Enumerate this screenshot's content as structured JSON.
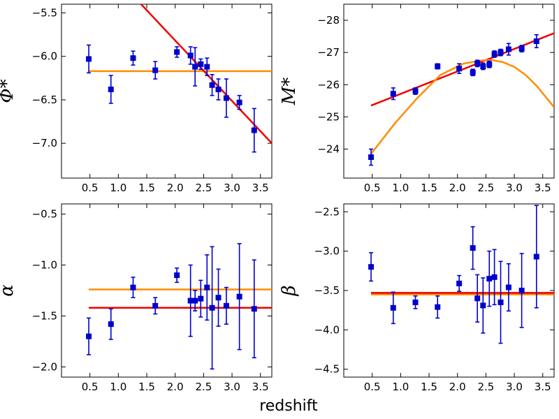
{
  "figure": {
    "xlabel": "redshift"
  },
  "colors": {
    "data": "#0000cc",
    "fit_red": "#ee0000",
    "fit_orange": "#ff8c00"
  },
  "chart_data": [
    {
      "type": "scatter",
      "panel": "top-left",
      "ylabel": "Φ*",
      "xlim": [
        0.0,
        3.7
      ],
      "ylim": [
        -7.4,
        -5.4
      ],
      "yinvert": false,
      "xticks": [
        0.5,
        1.0,
        1.5,
        2.0,
        2.5,
        3.0,
        3.5
      ],
      "xtick_labels": [
        "0.5",
        "1.0",
        "1.5",
        "2.0",
        "2.5",
        "3.0",
        "3.5"
      ],
      "yticks": [
        -5.5,
        -6.0,
        -6.5,
        -7.0
      ],
      "ytick_labels": [
        "−5.5",
        "−6.0",
        "−6.5",
        "−7.0"
      ],
      "points": {
        "x": [
          0.48,
          0.87,
          1.26,
          1.65,
          2.03,
          2.27,
          2.35,
          2.45,
          2.56,
          2.65,
          2.76,
          2.9,
          3.13,
          3.39
        ],
        "y": [
          -6.03,
          -6.38,
          -6.02,
          -6.16,
          -5.95,
          -5.99,
          -6.12,
          -6.09,
          -6.12,
          -6.33,
          -6.38,
          -6.48,
          -6.53,
          -6.85
        ],
        "err": [
          0.16,
          0.16,
          0.08,
          0.1,
          0.06,
          0.1,
          0.22,
          0.06,
          0.1,
          0.12,
          0.12,
          0.22,
          0.08,
          0.25
        ]
      },
      "lines": [
        {
          "name": "",
          "color": "fit_orange",
          "x": [
            0.48,
            3.7
          ],
          "y": [
            -6.17,
            -6.17
          ]
        },
        {
          "name": "",
          "color": "fit_red",
          "x": [
            1.4,
            3.7
          ],
          "y": [
            -5.4,
            -7.0
          ]
        }
      ]
    },
    {
      "type": "scatter",
      "panel": "top-right",
      "ylabel": "M*",
      "xlim": [
        0.0,
        3.7
      ],
      "ylim": [
        -23.1,
        -28.5
      ],
      "yinvert": true,
      "xticks": [
        0.5,
        1.0,
        1.5,
        2.0,
        2.5,
        3.0,
        3.5
      ],
      "xtick_labels": [
        "0.5",
        "1.0",
        "1.5",
        "2.0",
        "2.5",
        "3.0",
        "3.5"
      ],
      "yticks": [
        -24,
        -25,
        -26,
        -27,
        -28
      ],
      "ytick_labels": [
        "−24",
        "−25",
        "−26",
        "−27",
        "−28"
      ],
      "points": {
        "x": [
          0.48,
          0.87,
          1.26,
          1.65,
          2.03,
          2.27,
          2.35,
          2.45,
          2.56,
          2.65,
          2.76,
          2.9,
          3.13,
          3.39
        ],
        "y": [
          -23.75,
          -25.72,
          -25.8,
          -26.57,
          -26.5,
          -26.38,
          -26.66,
          -26.57,
          -26.63,
          -26.95,
          -27.0,
          -27.1,
          -27.12,
          -27.35
        ],
        "err": [
          0.25,
          0.18,
          0.1,
          0.08,
          0.15,
          0.1,
          0.1,
          0.1,
          0.1,
          0.1,
          0.1,
          0.18,
          0.1,
          0.2
        ]
      },
      "lines": [
        {
          "name": "",
          "color": "fit_red",
          "x": [
            0.48,
            3.7
          ],
          "y": [
            -25.35,
            -27.6
          ]
        },
        {
          "name": "",
          "color": "fit_orange",
          "x": [
            0.48,
            0.9,
            1.3,
            1.7,
            2.1,
            2.4,
            2.6,
            2.8,
            3.0,
            3.2,
            3.4,
            3.7
          ],
          "y": [
            -23.85,
            -24.8,
            -25.6,
            -26.3,
            -26.65,
            -26.75,
            -26.77,
            -26.7,
            -26.55,
            -26.3,
            -25.95,
            -25.3
          ]
        }
      ]
    },
    {
      "type": "scatter",
      "panel": "bottom-left",
      "ylabel": "α",
      "xlim": [
        0.0,
        3.7
      ],
      "ylim": [
        -2.1,
        -0.4
      ],
      "yinvert": false,
      "xticks": [
        0.5,
        1.0,
        1.5,
        2.0,
        2.5,
        3.0,
        3.5
      ],
      "xtick_labels": [
        "0.5",
        "1.0",
        "1.5",
        "2.0",
        "2.5",
        "3.0",
        "3.5"
      ],
      "yticks": [
        -0.5,
        -1.0,
        -1.5,
        -2.0
      ],
      "ytick_labels": [
        "−0.5",
        "−1.0",
        "−1.5",
        "−2.0"
      ],
      "points": {
        "x": [
          0.48,
          0.87,
          1.26,
          1.65,
          2.03,
          2.27,
          2.35,
          2.45,
          2.56,
          2.65,
          2.76,
          2.9,
          3.13,
          3.39
        ],
        "y": [
          -1.7,
          -1.58,
          -1.22,
          -1.4,
          -1.1,
          -1.35,
          -1.35,
          -1.33,
          -1.22,
          -1.42,
          -1.32,
          -1.4,
          -1.31,
          -1.43
        ],
        "err": [
          0.18,
          0.15,
          0.1,
          0.08,
          0.07,
          0.35,
          0.1,
          0.18,
          0.32,
          0.6,
          0.28,
          0.18,
          0.52,
          0.48
        ]
      },
      "lines": [
        {
          "name": "",
          "color": "fit_orange",
          "x": [
            0.48,
            3.7
          ],
          "y": [
            -1.24,
            -1.24
          ]
        },
        {
          "name": "",
          "color": "fit_red",
          "x": [
            0.48,
            3.7
          ],
          "y": [
            -1.42,
            -1.42
          ]
        }
      ]
    },
    {
      "type": "scatter",
      "panel": "bottom-right",
      "ylabel": "β",
      "xlim": [
        0.0,
        3.7
      ],
      "ylim": [
        -4.6,
        -2.4
      ],
      "yinvert": false,
      "xticks": [
        0.5,
        1.0,
        1.5,
        2.0,
        2.5,
        3.0,
        3.5
      ],
      "xtick_labels": [
        "0.5",
        "1.0",
        "1.5",
        "2.0",
        "2.5",
        "3.0",
        "3.5"
      ],
      "yticks": [
        -2.5,
        -3.0,
        -3.5,
        -4.0,
        -4.5
      ],
      "ytick_labels": [
        "−2.5",
        "−3.0",
        "−3.5",
        "−4.0",
        "−4.5"
      ],
      "points": {
        "x": [
          0.48,
          0.87,
          1.26,
          1.65,
          2.03,
          2.27,
          2.35,
          2.45,
          2.56,
          2.65,
          2.76,
          2.9,
          3.13,
          3.39
        ],
        "y": [
          -3.2,
          -3.72,
          -3.65,
          -3.71,
          -3.41,
          -2.96,
          -3.6,
          -3.69,
          -3.35,
          -3.33,
          -3.65,
          -3.46,
          -3.5,
          -3.07
        ],
        "err": [
          0.18,
          0.2,
          0.08,
          0.14,
          0.1,
          0.27,
          0.3,
          0.35,
          0.35,
          0.35,
          0.52,
          0.3,
          0.47,
          0.65
        ]
      },
      "lines": [
        {
          "name": "",
          "color": "fit_orange",
          "x": [
            0.48,
            3.7
          ],
          "y": [
            -3.55,
            -3.55
          ]
        },
        {
          "name": "",
          "color": "fit_red",
          "x": [
            0.48,
            3.7
          ],
          "y": [
            -3.53,
            -3.53
          ]
        }
      ]
    }
  ]
}
